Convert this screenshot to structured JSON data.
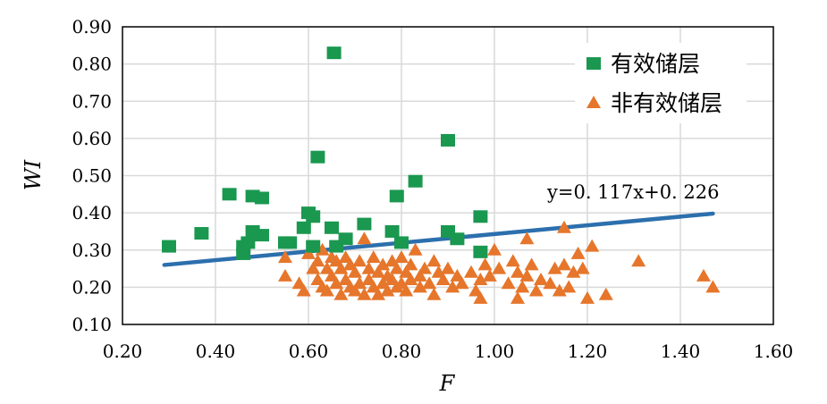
{
  "chart_data": {
    "type": "scatter",
    "xlabel": "F",
    "ylabel": "WI",
    "xlim": [
      0.2,
      1.6
    ],
    "ylim": [
      0.1,
      0.9
    ],
    "xticks": [
      "0.20",
      "0.40",
      "0.60",
      "0.80",
      "1.00",
      "1.20",
      "1.40",
      "1.60"
    ],
    "yticks": [
      "0.10",
      "0.20",
      "0.30",
      "0.40",
      "0.50",
      "0.60",
      "0.70",
      "0.80",
      "0.90"
    ],
    "grid": true,
    "legend_position": "top-right",
    "series": [
      {
        "name": "有效储层",
        "marker": "square",
        "color": "#1a9850",
        "points": [
          [
            0.3,
            0.31
          ],
          [
            0.37,
            0.345
          ],
          [
            0.43,
            0.45
          ],
          [
            0.46,
            0.29
          ],
          [
            0.46,
            0.31
          ],
          [
            0.47,
            0.32
          ],
          [
            0.48,
            0.445
          ],
          [
            0.48,
            0.35
          ],
          [
            0.5,
            0.44
          ],
          [
            0.5,
            0.34
          ],
          [
            0.55,
            0.32
          ],
          [
            0.56,
            0.32
          ],
          [
            0.59,
            0.36
          ],
          [
            0.6,
            0.4
          ],
          [
            0.61,
            0.39
          ],
          [
            0.61,
            0.31
          ],
          [
            0.62,
            0.55
          ],
          [
            0.65,
            0.36
          ],
          [
            0.655,
            0.83
          ],
          [
            0.66,
            0.31
          ],
          [
            0.68,
            0.33
          ],
          [
            0.72,
            0.37
          ],
          [
            0.78,
            0.35
          ],
          [
            0.79,
            0.445
          ],
          [
            0.8,
            0.32
          ],
          [
            0.83,
            0.485
          ],
          [
            0.9,
            0.595
          ],
          [
            0.9,
            0.35
          ],
          [
            0.92,
            0.33
          ],
          [
            0.97,
            0.39
          ],
          [
            0.97,
            0.295
          ]
        ]
      },
      {
        "name": "非有效储层",
        "marker": "triangle",
        "color": "#e6762b",
        "points": [
          [
            0.55,
            0.23
          ],
          [
            0.55,
            0.28
          ],
          [
            0.58,
            0.21
          ],
          [
            0.59,
            0.19
          ],
          [
            0.6,
            0.29
          ],
          [
            0.61,
            0.25
          ],
          [
            0.62,
            0.27
          ],
          [
            0.62,
            0.22
          ],
          [
            0.63,
            0.2
          ],
          [
            0.63,
            0.3
          ],
          [
            0.64,
            0.25
          ],
          [
            0.64,
            0.19
          ],
          [
            0.65,
            0.28
          ],
          [
            0.65,
            0.23
          ],
          [
            0.66,
            0.21
          ],
          [
            0.66,
            0.27
          ],
          [
            0.67,
            0.18
          ],
          [
            0.67,
            0.25
          ],
          [
            0.68,
            0.22
          ],
          [
            0.68,
            0.28
          ],
          [
            0.69,
            0.2
          ],
          [
            0.69,
            0.26
          ],
          [
            0.7,
            0.24
          ],
          [
            0.7,
            0.19
          ],
          [
            0.71,
            0.27
          ],
          [
            0.71,
            0.21
          ],
          [
            0.72,
            0.33
          ],
          [
            0.72,
            0.18
          ],
          [
            0.73,
            0.25
          ],
          [
            0.73,
            0.22
          ],
          [
            0.74,
            0.28
          ],
          [
            0.74,
            0.2
          ],
          [
            0.75,
            0.24
          ],
          [
            0.75,
            0.18
          ],
          [
            0.76,
            0.26
          ],
          [
            0.76,
            0.21
          ],
          [
            0.77,
            0.23
          ],
          [
            0.77,
            0.19
          ],
          [
            0.78,
            0.27
          ],
          [
            0.78,
            0.22
          ],
          [
            0.79,
            0.25
          ],
          [
            0.79,
            0.2
          ],
          [
            0.8,
            0.28
          ],
          [
            0.8,
            0.21
          ],
          [
            0.81,
            0.24
          ],
          [
            0.81,
            0.19
          ],
          [
            0.82,
            0.26
          ],
          [
            0.82,
            0.22
          ],
          [
            0.83,
            0.3
          ],
          [
            0.84,
            0.23
          ],
          [
            0.84,
            0.2
          ],
          [
            0.85,
            0.25
          ],
          [
            0.86,
            0.21
          ],
          [
            0.87,
            0.27
          ],
          [
            0.87,
            0.18
          ],
          [
            0.88,
            0.24
          ],
          [
            0.89,
            0.22
          ],
          [
            0.9,
            0.25
          ],
          [
            0.91,
            0.2
          ],
          [
            0.92,
            0.23
          ],
          [
            0.93,
            0.21
          ],
          [
            0.95,
            0.24
          ],
          [
            0.96,
            0.19
          ],
          [
            0.97,
            0.22
          ],
          [
            0.97,
            0.17
          ],
          [
            0.98,
            0.26
          ],
          [
            0.99,
            0.23
          ],
          [
            1.0,
            0.3
          ],
          [
            1.01,
            0.25
          ],
          [
            1.03,
            0.21
          ],
          [
            1.04,
            0.27
          ],
          [
            1.05,
            0.24
          ],
          [
            1.05,
            0.17
          ],
          [
            1.06,
            0.2
          ],
          [
            1.07,
            0.23
          ],
          [
            1.07,
            0.33
          ],
          [
            1.08,
            0.26
          ],
          [
            1.09,
            0.19
          ],
          [
            1.1,
            0.22
          ],
          [
            1.12,
            0.21
          ],
          [
            1.13,
            0.25
          ],
          [
            1.14,
            0.19
          ],
          [
            1.15,
            0.26
          ],
          [
            1.15,
            0.36
          ],
          [
            1.16,
            0.2
          ],
          [
            1.17,
            0.24
          ],
          [
            1.18,
            0.29
          ],
          [
            1.19,
            0.25
          ],
          [
            1.2,
            0.17
          ],
          [
            1.21,
            0.31
          ],
          [
            1.24,
            0.18
          ],
          [
            1.31,
            0.27
          ],
          [
            1.45,
            0.23
          ],
          [
            1.47,
            0.2
          ]
        ]
      }
    ],
    "trendline": {
      "color": "#2c6fad",
      "slope": 0.117,
      "intercept": 0.226,
      "x_range": [
        0.29,
        1.47
      ],
      "label": "y=0. 117x+0. 226"
    }
  }
}
